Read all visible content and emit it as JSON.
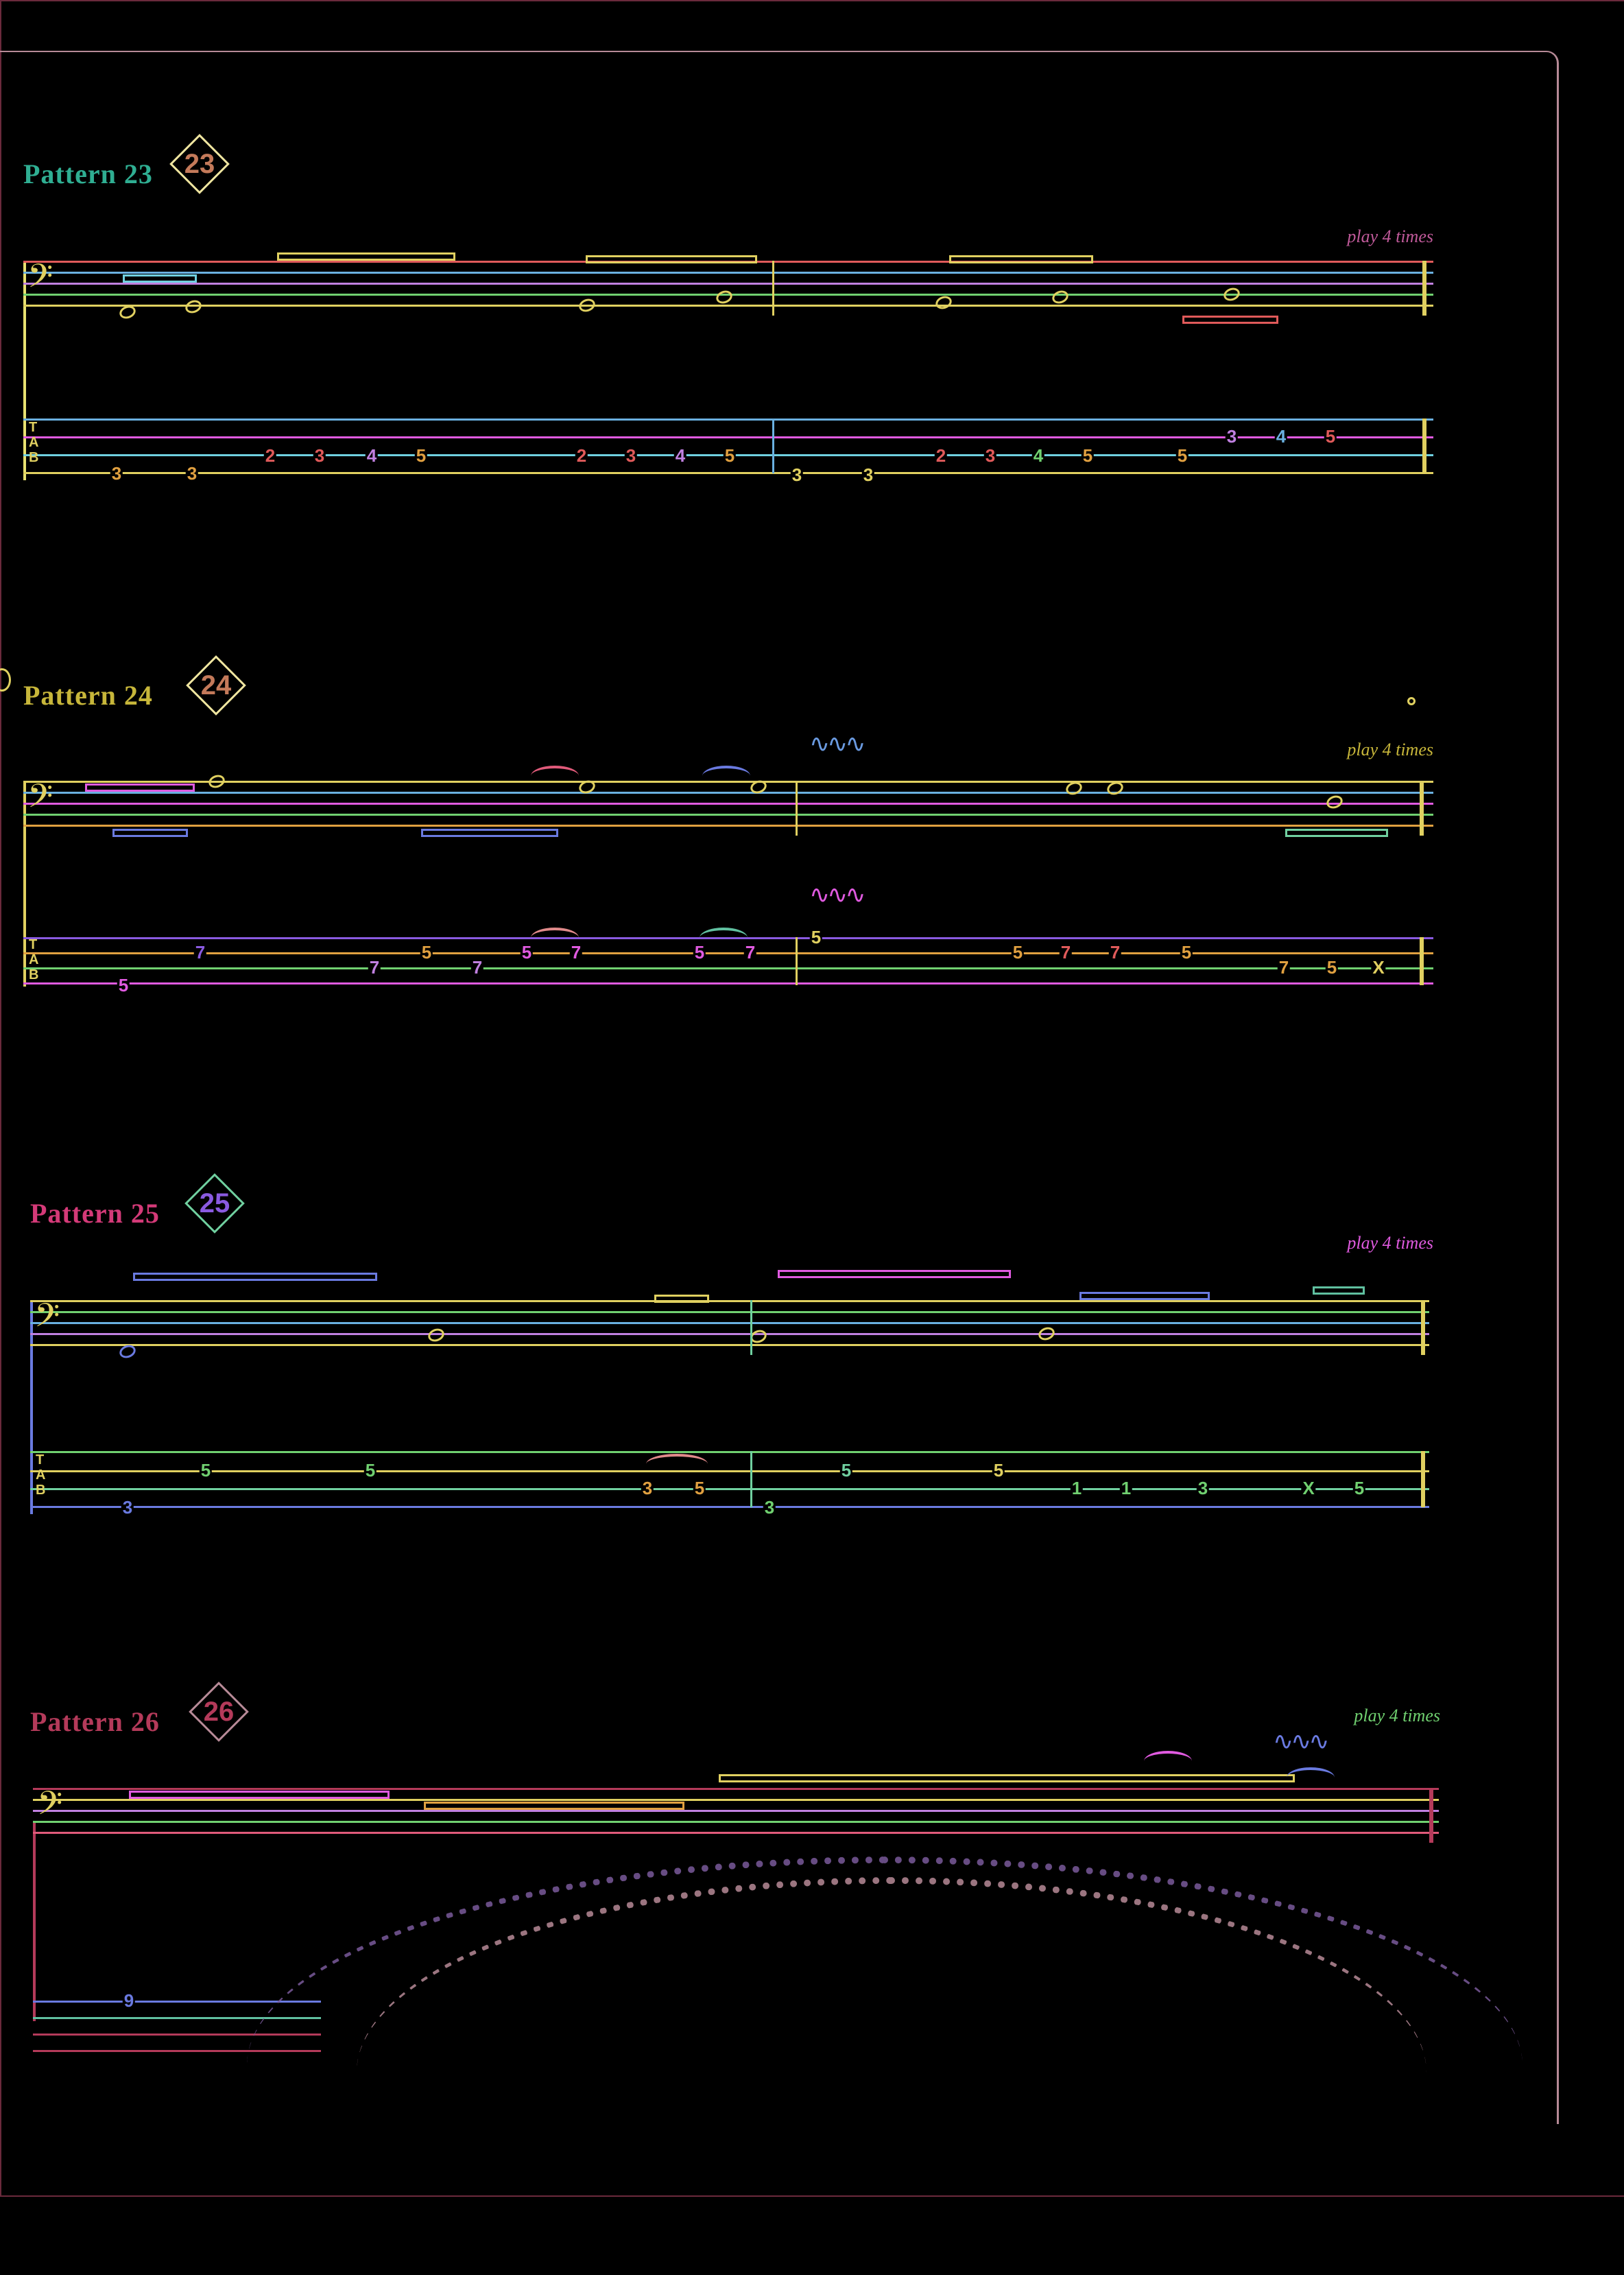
{
  "colors": {
    "background": "#000000",
    "frame": "#6b2a3c",
    "paper_edge": "#b78a97",
    "accent_23": "#2fae92",
    "accent_24": "#c7b63a",
    "accent_25": "#d43a78",
    "accent_26": "#b43a5a"
  },
  "patterns": [
    {
      "title": "Pattern 23",
      "number": "23",
      "repeat_note": "play 4 times",
      "tab_notes": [
        "3",
        "3",
        "2",
        "3",
        "4",
        "5",
        "2",
        "3",
        "4",
        "5",
        "3",
        "3",
        "2",
        "3",
        "4",
        "5",
        "5",
        "3",
        "4",
        "5"
      ]
    },
    {
      "title": "Pattern 24",
      "number": "24",
      "repeat_note": "play 4 times",
      "tab_notes": [
        "7",
        "5",
        "7",
        "5",
        "7",
        "5",
        "7",
        "5",
        "7",
        "5",
        "5",
        "7",
        "7",
        "5",
        "7",
        "5",
        "X"
      ]
    },
    {
      "title": "Pattern 25",
      "number": "25",
      "repeat_note": "play 4 times",
      "tab_notes": [
        "5",
        "5",
        "3",
        "3",
        "5",
        "3",
        "5",
        "5",
        "1",
        "1",
        "3",
        "X",
        "5"
      ]
    },
    {
      "title": "Pattern 26",
      "number": "26",
      "repeat_note": "play 4 times",
      "tab_notes": [
        "9"
      ]
    }
  ],
  "icons": {
    "bass_clef": "bass-clef-icon",
    "tab_clef": "tab-clef-icon",
    "vibrato": "vibrato-icon",
    "capo": "capo-icon"
  },
  "tab_clef_letters": [
    "T",
    "A",
    "B"
  ],
  "bass_clef_glyph": "𝄢",
  "vibrato_glyph": "∿∿∿"
}
